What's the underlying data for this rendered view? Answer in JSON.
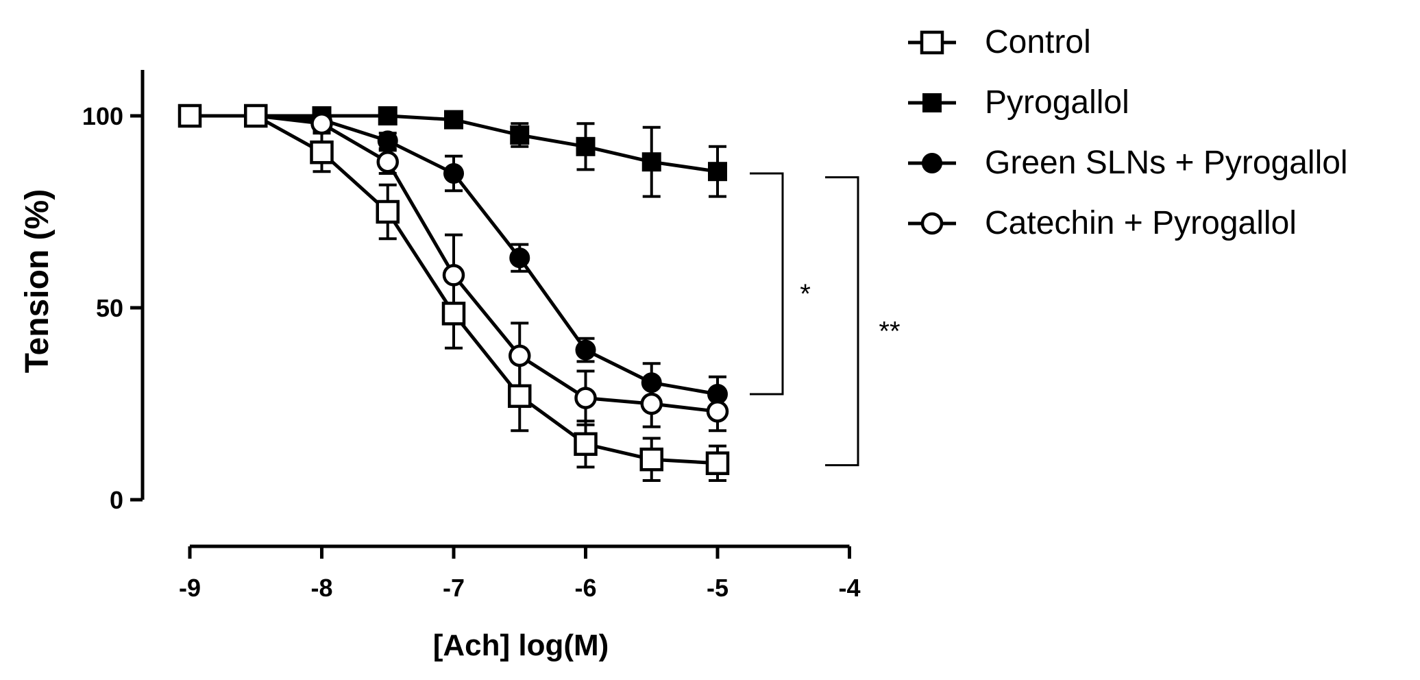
{
  "chart_data": {
    "type": "line",
    "title": "",
    "xlabel": "[Ach] log(M)",
    "ylabel": "Tension (%)",
    "xlim": [
      -9,
      -4
    ],
    "ylim": [
      0,
      110
    ],
    "xticks": [
      -9,
      -8,
      -7,
      -6,
      -5,
      -4
    ],
    "yticks": [
      0,
      50,
      100
    ],
    "xtick_labels": [
      "-9",
      "-8",
      "-7",
      "-6",
      "-5",
      "-4"
    ],
    "ytick_labels": [
      "0",
      "50",
      "100"
    ],
    "x": [
      -9,
      -8.5,
      -8,
      -7.5,
      -7,
      -6.5,
      -6,
      -5.5,
      -5
    ],
    "legend_position": "top-right",
    "series": [
      {
        "name": "Control",
        "marker": "square-open",
        "x": [
          -9,
          -8.5,
          -8,
          -7.5,
          -7,
          -6.5,
          -6,
          -5.5,
          -5
        ],
        "values": [
          100,
          100,
          90.5,
          75,
          48.5,
          27,
          14.5,
          10.5,
          9.5
        ],
        "errors": [
          0,
          0,
          5,
          7,
          9,
          9,
          6,
          5.5,
          4.5
        ]
      },
      {
        "name": "Pyrogallol",
        "marker": "square-filled",
        "x": [
          -9,
          -8.5,
          -8,
          -7.5,
          -7,
          -6.5,
          -6,
          -5.5,
          -5
        ],
        "values": [
          100,
          100,
          100,
          100,
          99,
          95,
          92,
          88,
          85.5
        ],
        "errors": [
          0,
          0,
          0,
          0,
          1,
          3,
          6,
          9,
          6.5
        ]
      },
      {
        "name": "Green SLNs + Pyrogallol",
        "marker": "circle-filled",
        "x": [
          -9,
          -8.5,
          -8,
          -7.5,
          -7,
          -6.5,
          -6,
          -5.5,
          -5
        ],
        "values": [
          100,
          100,
          99,
          93.5,
          85,
          63,
          39,
          30.5,
          27.5
        ],
        "errors": [
          0,
          0,
          1,
          2,
          4.5,
          3.5,
          3,
          5,
          4.5
        ]
      },
      {
        "name": "Catechin + Pyrogallol",
        "marker": "circle-open",
        "x": [
          -9,
          -8.5,
          -8,
          -7.5,
          -7,
          -6.5,
          -6,
          -5.5,
          -5
        ],
        "values": [
          100,
          100,
          98,
          88,
          58.5,
          37.5,
          26.5,
          25,
          23
        ],
        "errors": [
          0,
          0,
          2,
          3,
          10.5,
          8.5,
          7,
          6,
          5
        ]
      }
    ],
    "annotations": [
      {
        "text": "*",
        "from": 85,
        "to": 27.5
      },
      {
        "text": "**",
        "from": 84,
        "to": 9
      }
    ]
  }
}
